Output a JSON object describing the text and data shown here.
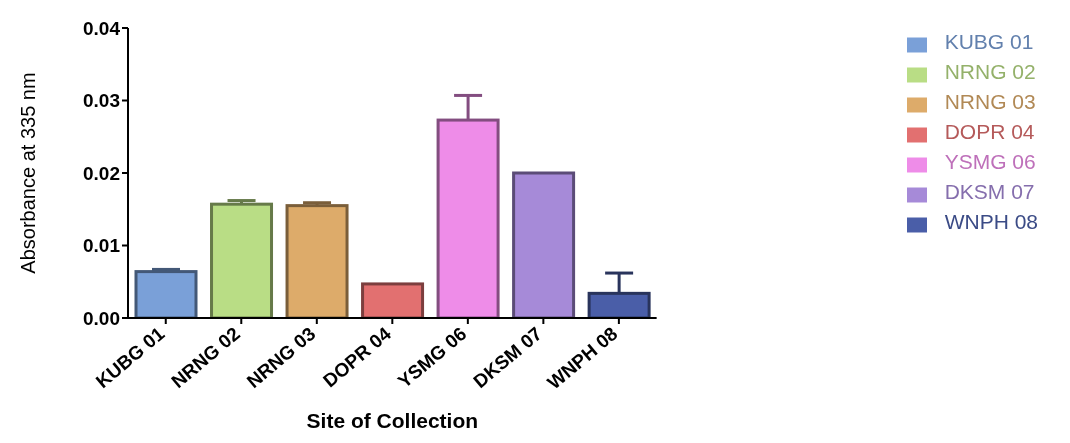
{
  "chart_data": {
    "type": "bar",
    "xlabel": "Site of Collection",
    "ylabel": "Absorbance at 335 nm",
    "categories": [
      "KUBG 01",
      "NRNG 02",
      "NRNG 03",
      "DOPR 04",
      "YSMG 06",
      "DKSM 07",
      "WNPH 08"
    ],
    "series": [
      {
        "name": "KUBG 01",
        "color": "#7aa0d8",
        "values": [
          0.0064,
          null,
          null,
          null,
          null,
          null,
          null
        ],
        "errors": [
          0.0003,
          null,
          null,
          null,
          null,
          null,
          null
        ]
      },
      {
        "name": "NRNG 02",
        "color": "#b9dd85",
        "values": [
          null,
          0.0157,
          null,
          null,
          null,
          null,
          null
        ],
        "errors": [
          null,
          0.0005,
          null,
          null,
          null,
          null,
          null
        ]
      },
      {
        "name": "NRNG 03",
        "color": "#ddab6a",
        "values": [
          null,
          null,
          0.0155,
          null,
          null,
          null,
          null
        ],
        "errors": [
          null,
          null,
          0.0004,
          null,
          null,
          null,
          null
        ]
      },
      {
        "name": "DOPR 04",
        "color": "#e27070",
        "values": [
          null,
          null,
          null,
          0.0047,
          null,
          null,
          null
        ]
      },
      {
        "name": "YSMG 06",
        "color": "#ee8ce8",
        "values": [
          null,
          null,
          null,
          null,
          0.0273,
          null,
          null
        ],
        "errors": [
          null,
          null,
          null,
          null,
          0.0034,
          null,
          null
        ]
      },
      {
        "name": "DKSM 07",
        "color": "#a68ad8",
        "values": [
          null,
          null,
          null,
          null,
          null,
          0.02,
          null
        ]
      },
      {
        "name": "WNPH 08",
        "color": "#4a5ea8",
        "values": [
          null,
          null,
          null,
          null,
          null,
          null,
          0.0034
        ],
        "errors": [
          null,
          null,
          null,
          null,
          null,
          null,
          0.0028
        ]
      }
    ],
    "ylim": [
      0,
      0.04
    ],
    "yticks": [
      {
        "value": 0,
        "label": "0.00"
      },
      {
        "value": 0.01,
        "label": "0.01"
      },
      {
        "value": 0.02,
        "label": "0.02"
      },
      {
        "value": 0.03,
        "label": "0.03"
      },
      {
        "value": 0.04,
        "label": "0.04"
      }
    ],
    "grid": false,
    "legend": "top right"
  }
}
